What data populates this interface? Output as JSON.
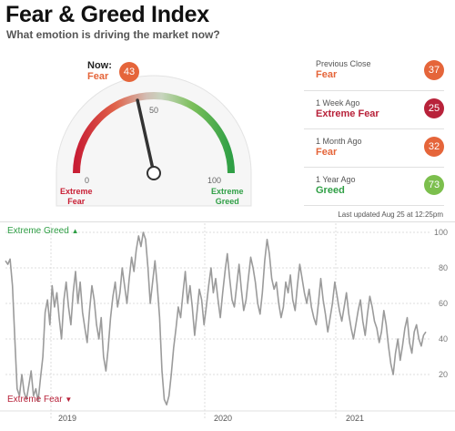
{
  "header": {
    "title": "Fear & Greed Index",
    "subtitle": "What emotion is driving the market now?"
  },
  "gauge": {
    "now_label": "Now:",
    "value": 43,
    "value_text": "43",
    "rating": "Fear",
    "tick_0": "0",
    "tick_50": "50",
    "tick_100": "100",
    "left_end_line1": "Extreme",
    "left_end_line2": "Fear",
    "right_end_line1": "Extreme",
    "right_end_line2": "Greed"
  },
  "history": [
    {
      "label": "Previous Close",
      "rating": "Fear",
      "value": "37",
      "color": "#e5653a"
    },
    {
      "label": "1 Week Ago",
      "rating": "Extreme Fear",
      "value": "25",
      "color": "#b8223a"
    },
    {
      "label": "1 Month Ago",
      "rating": "Fear",
      "value": "32",
      "color": "#e5653a"
    },
    {
      "label": "1 Year Ago",
      "rating": "Greed",
      "value": "73",
      "color": "#7cbf4d"
    }
  ],
  "last_updated": "Last updated Aug 25 at 12:25pm",
  "colors": {
    "fear": "#e5653a",
    "extreme_fear": "#b8223a",
    "greed": "#2f9f45",
    "line": "#9b9b9b"
  },
  "chart_data": {
    "type": "line",
    "title": "",
    "xlabel": "",
    "ylabel": "",
    "ylim": [
      0,
      100
    ],
    "yticks": [
      "20",
      "40",
      "60",
      "80",
      "100"
    ],
    "year_labels": [
      "2019",
      "2020",
      "2021"
    ],
    "top_band_label": "Extreme Greed",
    "bottom_band_label": "Extreme Fear",
    "series": [
      {
        "name": "",
        "x": [
          0,
          1,
          2,
          3,
          4,
          5,
          6,
          7,
          8,
          9,
          10,
          11,
          12,
          13,
          14,
          15,
          16,
          17,
          18,
          19,
          20,
          21,
          22,
          23,
          24,
          25,
          26,
          27,
          28,
          29,
          30,
          31,
          32,
          33,
          34,
          35,
          36,
          37,
          38,
          39,
          40,
          41,
          42,
          43,
          44,
          45,
          46,
          47,
          48,
          49,
          50,
          51,
          52,
          53,
          54,
          55,
          56,
          57,
          58,
          59,
          60,
          61,
          62,
          63,
          64,
          65,
          66,
          67,
          68,
          69,
          70,
          71,
          72,
          73,
          74,
          75,
          76,
          77,
          78,
          79,
          80,
          81,
          82,
          83,
          84,
          85,
          86,
          87,
          88,
          89,
          90,
          91,
          92,
          93,
          94,
          95,
          96,
          97,
          98,
          99,
          100,
          101,
          102,
          103,
          104,
          105,
          106,
          107,
          108,
          109,
          110,
          111,
          112,
          113,
          114,
          115,
          116,
          117,
          118,
          119,
          120,
          121,
          122,
          123,
          124,
          125,
          126,
          127,
          128,
          129,
          130,
          131,
          132,
          133,
          134,
          135,
          136,
          137,
          138,
          139,
          140,
          141,
          142,
          143,
          144,
          145,
          146,
          147,
          148,
          149,
          150,
          151,
          152,
          153,
          154,
          155,
          156,
          157,
          158,
          159,
          160,
          161,
          162,
          163,
          164,
          165,
          166,
          167,
          168,
          169,
          170,
          171,
          172,
          173,
          174,
          175,
          176,
          177,
          178,
          179,
          180
        ],
        "values": [
          84,
          82,
          85,
          70,
          40,
          12,
          8,
          20,
          10,
          6,
          14,
          22,
          8,
          12,
          5,
          18,
          30,
          55,
          62,
          48,
          70,
          58,
          66,
          52,
          40,
          62,
          72,
          58,
          48,
          66,
          78,
          60,
          72,
          55,
          46,
          38,
          56,
          70,
          62,
          48,
          40,
          52,
          30,
          22,
          35,
          52,
          64,
          72,
          58,
          66,
          80,
          70,
          60,
          74,
          86,
          78,
          90,
          98,
          92,
          100,
          96,
          80,
          60,
          72,
          84,
          70,
          52,
          22,
          6,
          3,
          8,
          20,
          35,
          46,
          58,
          52,
          66,
          78,
          60,
          70,
          58,
          42,
          55,
          68,
          62,
          48,
          58,
          70,
          80,
          66,
          74,
          62,
          52,
          66,
          78,
          88,
          74,
          62,
          58,
          70,
          82,
          68,
          56,
          62,
          74,
          86,
          80,
          72,
          60,
          54,
          66,
          84,
          96,
          88,
          74,
          68,
          72,
          60,
          52,
          58,
          72,
          66,
          76,
          62,
          56,
          70,
          82,
          74,
          66,
          60,
          68,
          58,
          52,
          48,
          60,
          74,
          62,
          54,
          44,
          52,
          60,
          72,
          64,
          56,
          50,
          58,
          66,
          54,
          46,
          40,
          48,
          56,
          62,
          50,
          42,
          54,
          64,
          58,
          50,
          46,
          38,
          44,
          56,
          48,
          36,
          26,
          20,
          32,
          40,
          28,
          36,
          46,
          52,
          38,
          32,
          44,
          48,
          40,
          36,
          42,
          44
        ]
      }
    ]
  }
}
